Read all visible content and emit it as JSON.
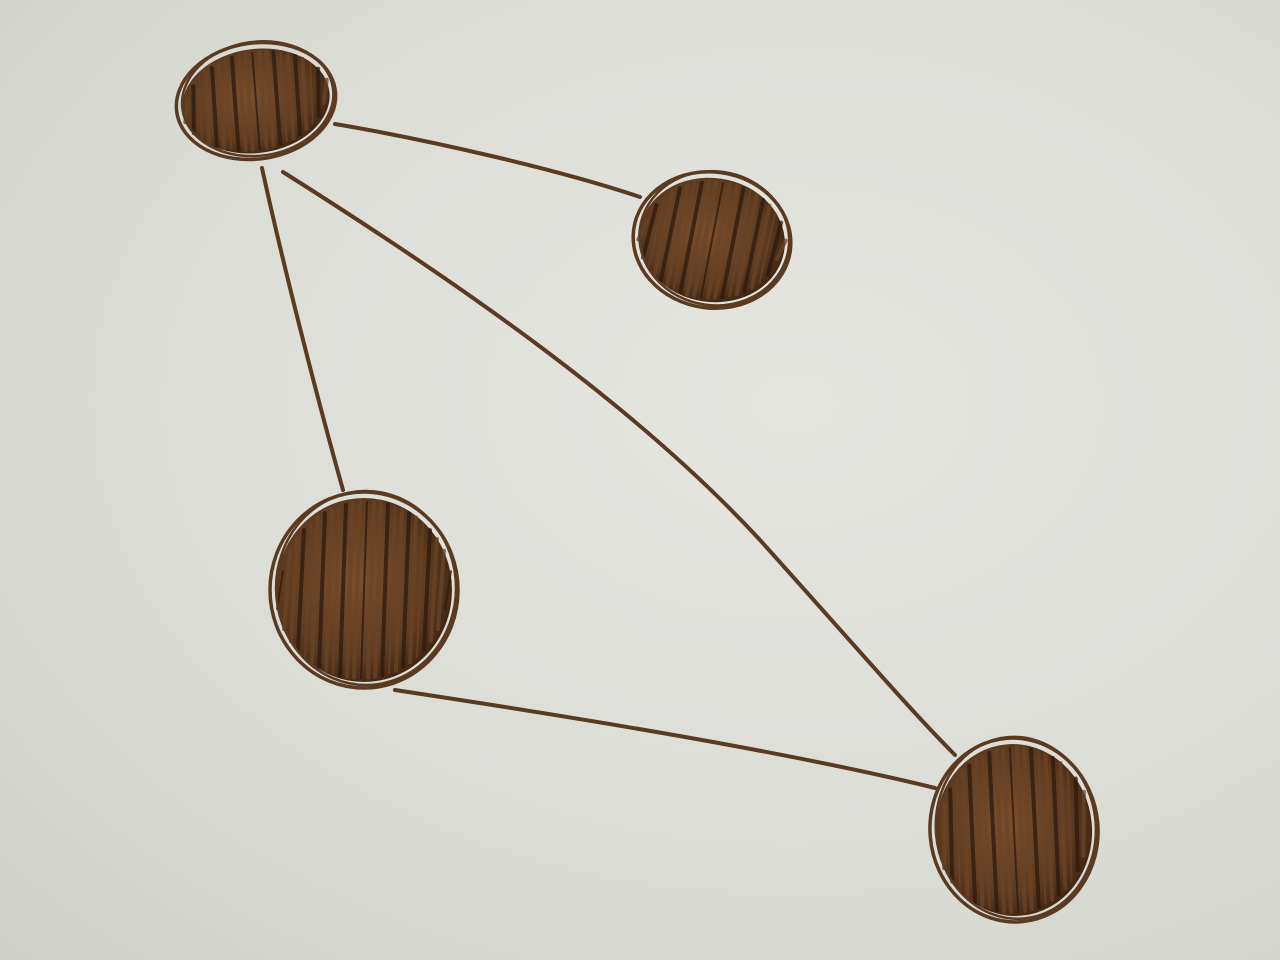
{
  "diagram": {
    "type": "undirected-graph",
    "style": "hand-drawn marker on paper",
    "colors": {
      "paper": "#dcddd7",
      "ink": "#5a3a20",
      "node_fill": "#6b4426",
      "node_dark": "#2e1a0c"
    },
    "nodes": [
      {
        "id": "node-top-left"
      },
      {
        "id": "node-top-right"
      },
      {
        "id": "node-middle-left"
      },
      {
        "id": "node-bottom-right"
      }
    ],
    "edges": [
      {
        "id": "edge-top-left-to-top-right",
        "from": "node-top-left",
        "to": "node-top-right"
      },
      {
        "id": "edge-top-left-to-middle-left",
        "from": "node-top-left",
        "to": "node-middle-left"
      },
      {
        "id": "edge-top-left-to-bottom-right",
        "from": "node-top-left",
        "to": "node-bottom-right"
      },
      {
        "id": "edge-middle-left-to-bottom-right",
        "from": "node-middle-left",
        "to": "node-bottom-right"
      }
    ]
  }
}
